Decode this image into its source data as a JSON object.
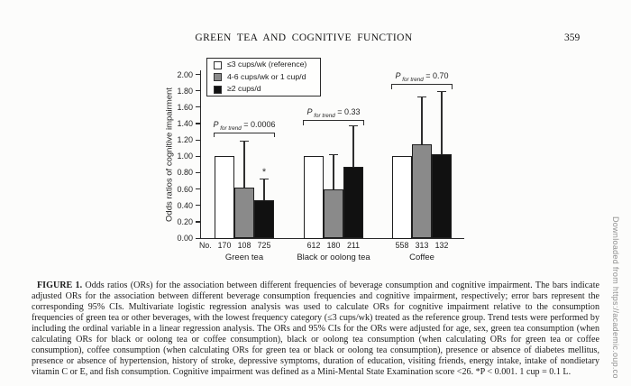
{
  "page": {
    "running_title": "GREEN TEA AND COGNITIVE FUNCTION",
    "page_number": "359",
    "watermark": "Downloaded from https://academic.oup.co"
  },
  "chart_data": {
    "type": "bar",
    "ylabel": "Odds ratios of cognitive impairment",
    "ylim": [
      0.0,
      2.0
    ],
    "yticks": [
      "0.00",
      "0.20",
      "0.40",
      "0.60",
      "0.80",
      "1.00",
      "1.20",
      "1.40",
      "1.60",
      "1.80",
      "2.00"
    ],
    "grid": "off",
    "legend_position": "upper-left-boxed",
    "legend": [
      {
        "label": "≤3 cups/wk (reference)",
        "color": "#ffffff"
      },
      {
        "label": "4-6 cups/wk or 1 cup/d",
        "color": "#8a8a8a"
      },
      {
        "label": "≥2 cups/d",
        "color": "#111111"
      }
    ],
    "n_row_label": "No.",
    "p_prefix": "P",
    "p_subscript": "for trend",
    "groups": [
      {
        "label": "Green tea",
        "n": [
          "170",
          "108",
          "725"
        ],
        "or": [
          1.0,
          0.62,
          0.46
        ],
        "ci_upper": [
          null,
          1.19,
          0.72
        ],
        "sig": [
          null,
          null,
          "*"
        ],
        "p_value": "0.0006",
        "bracket_or": 1.29
      },
      {
        "label": "Black or oolong tea",
        "n": [
          "612",
          "180",
          "211"
        ],
        "or": [
          1.0,
          0.6,
          0.87
        ],
        "ci_upper": [
          null,
          1.02,
          1.37
        ],
        "sig": [
          null,
          null,
          null
        ],
        "p_value": "0.33",
        "bracket_or": 1.44
      },
      {
        "label": "Coffee",
        "n": [
          "558",
          "313",
          "132"
        ],
        "or": [
          1.0,
          1.15,
          1.02
        ],
        "ci_upper": [
          null,
          1.73,
          1.79
        ],
        "sig": [
          null,
          null,
          null
        ],
        "p_value": "0.70",
        "bracket_or": 1.88
      }
    ]
  },
  "caption": {
    "label": "FIGURE 1.",
    "text": " Odds ratios (ORs) for the association between different frequencies of beverage consumption and cognitive impairment. The bars indicate adjusted ORs for the association between different beverage consumption frequencies and cognitive impairment, respectively; error bars represent the corresponding 95% CIs. Multivariate logistic regression analysis was used to calculate ORs for cognitive impairment relative to the consumption frequencies of green tea or other beverages, with the lowest frequency category (≤3 cups/wk) treated as the reference group. Trend tests were performed by including the ordinal variable in a linear regression analysis. The ORs and 95% CIs for the ORs were adjusted for age, sex, green tea consumption (when calculating ORs for black or oolong tea or coffee consumption), black or oolong tea consumption (when calculating ORs for green tea or coffee consumption), coffee consumption (when calculating ORs for green tea or black or oolong tea consumption), presence or absence of diabetes mellitus, presence or absence of hypertension, history of stroke, depressive symptoms, duration of education, visiting friends, energy intake, intake of nondietary vitamin C or E, and fish consumption. Cognitive impairment was defined as a Mini-Mental State Examination score <26. *P < 0.001. 1 cup = 0.1 L."
  }
}
